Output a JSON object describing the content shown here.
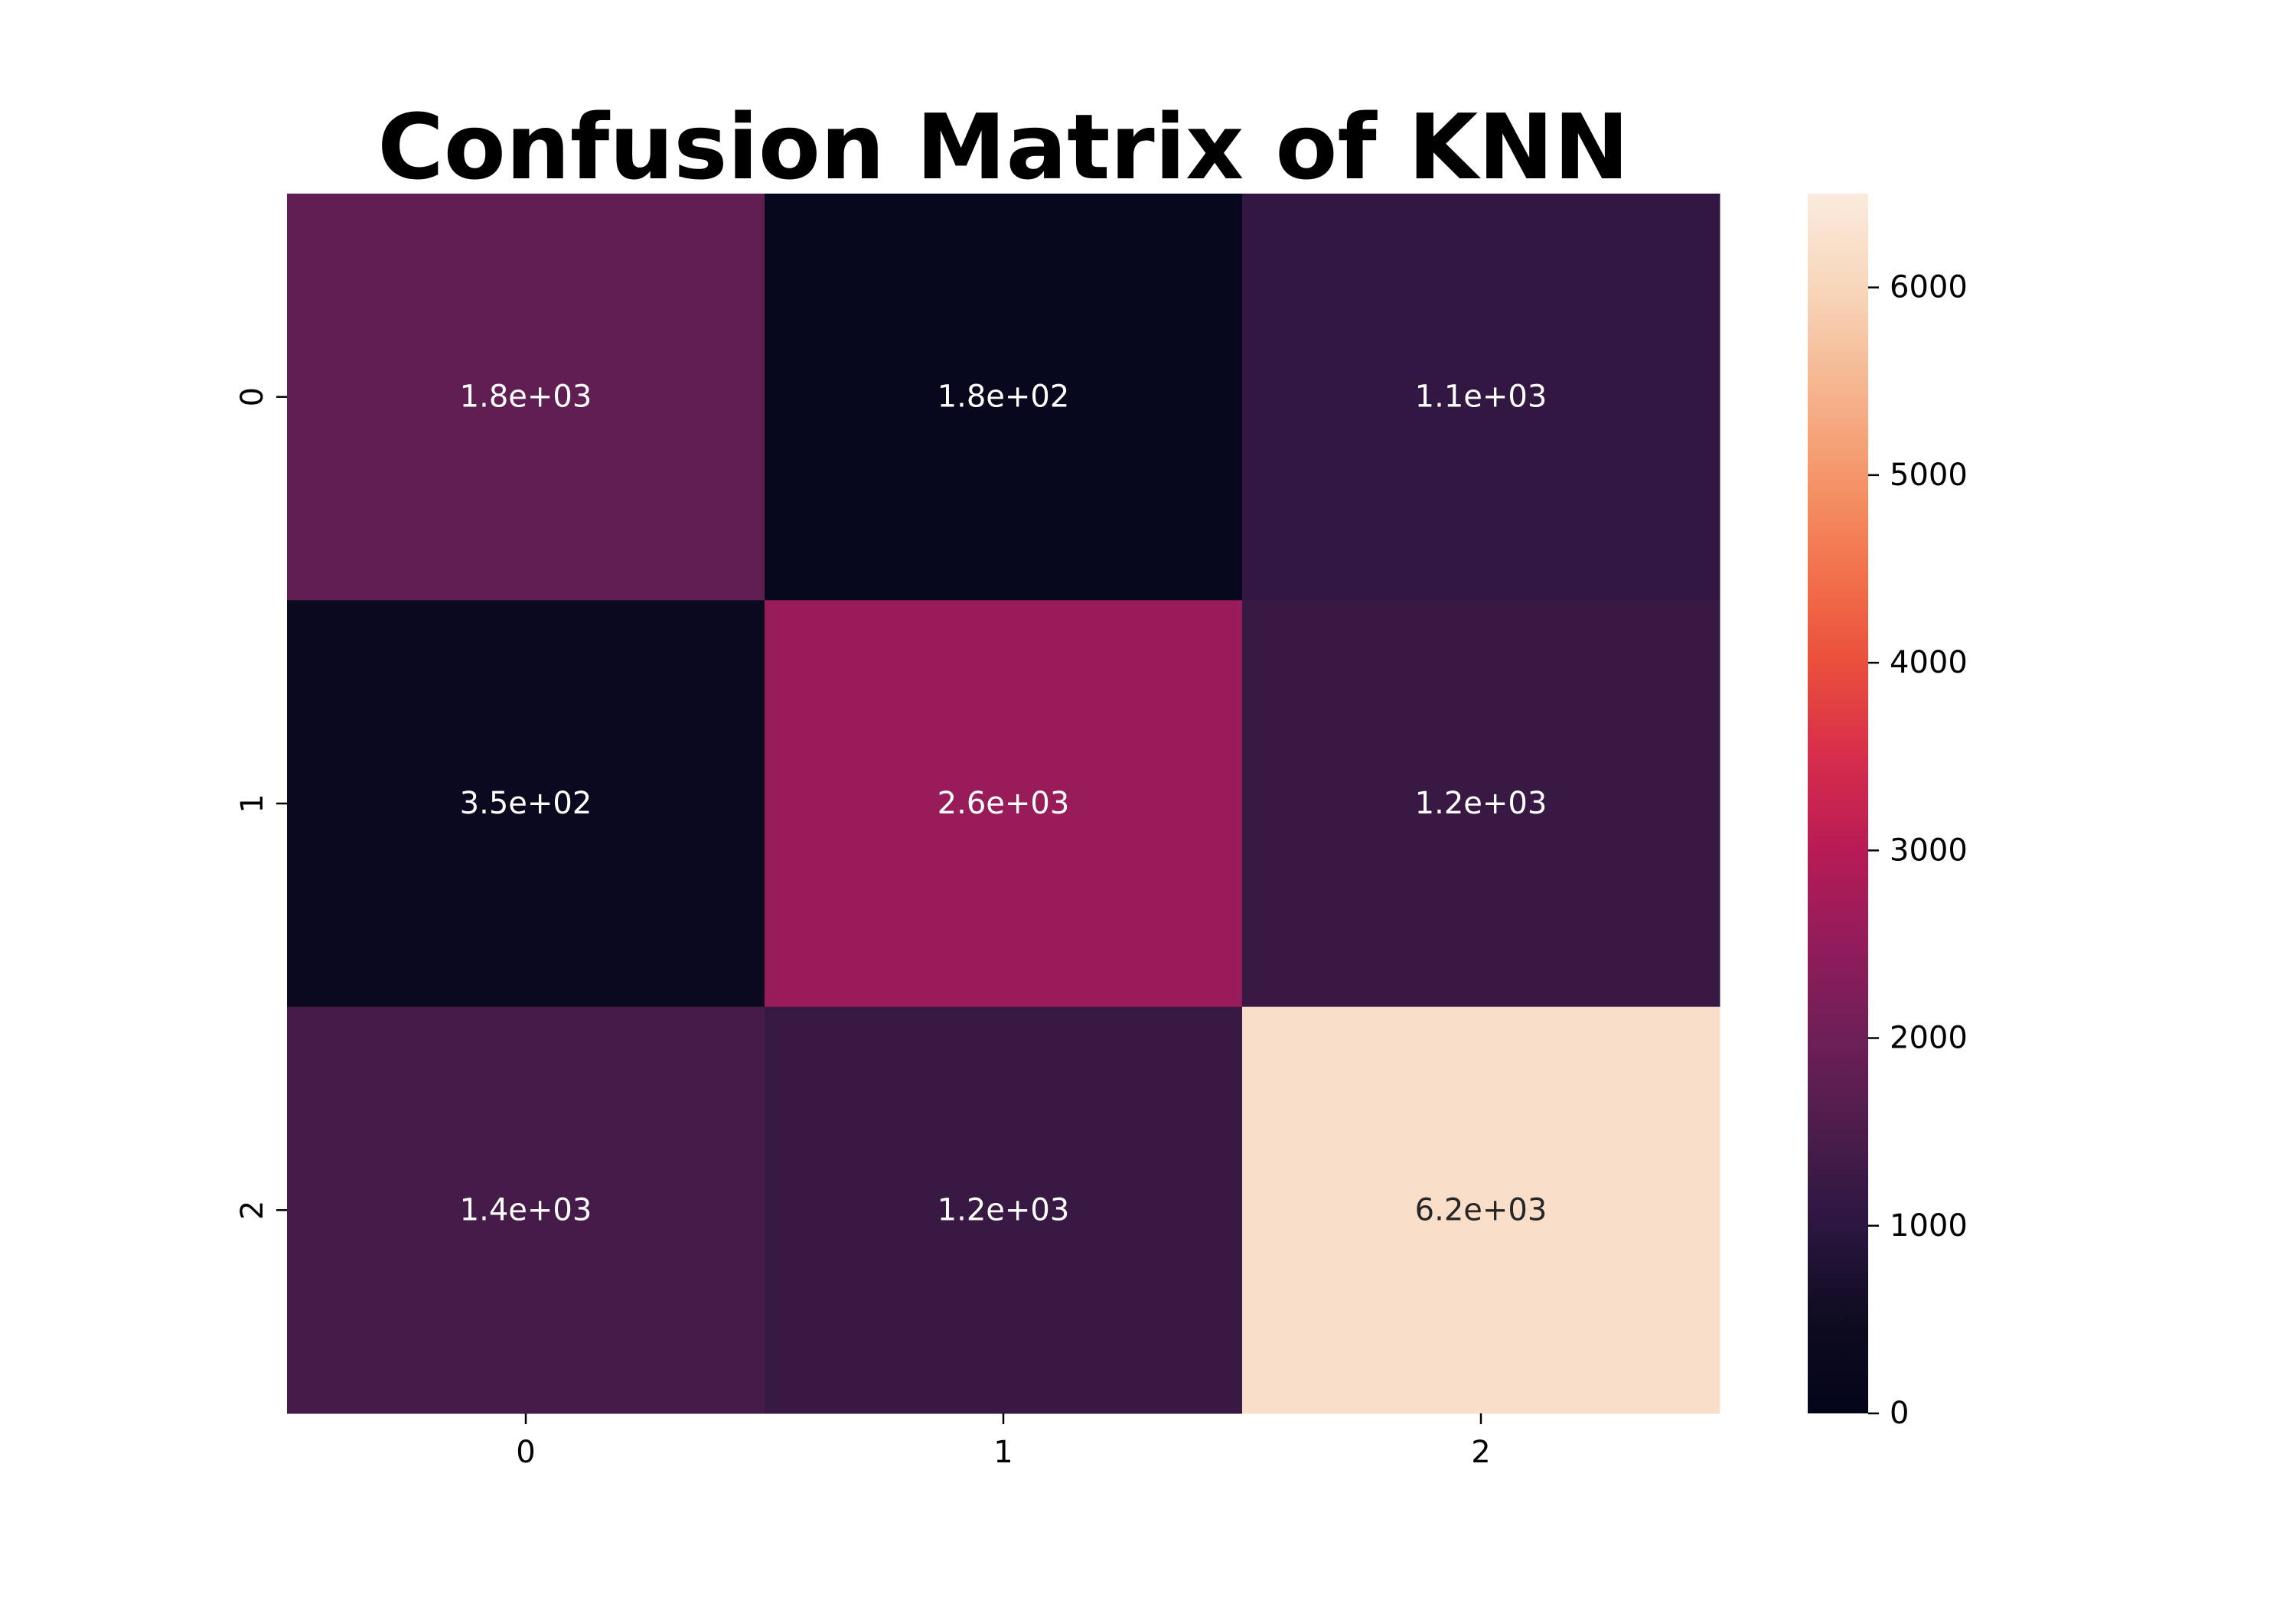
{
  "chart_data": {
    "type": "heatmap",
    "title": "Confusion Matrix of KNN",
    "xlabel": "",
    "ylabel": "",
    "x_categories": [
      "0",
      "1",
      "2"
    ],
    "y_categories": [
      "0",
      "1",
      "2"
    ],
    "values": [
      [
        1800,
        180,
        1100
      ],
      [
        350,
        2600,
        1200
      ],
      [
        1400,
        1200,
        6200
      ]
    ],
    "annotations": [
      [
        "1.8e+03",
        "1.8e+02",
        "1.1e+03"
      ],
      [
        "3.5e+02",
        "2.6e+03",
        "1.2e+03"
      ],
      [
        "1.4e+03",
        "1.2e+03",
        "6.2e+03"
      ]
    ],
    "colorbar": {
      "range": [
        0,
        6500
      ],
      "ticks": [
        0,
        1000,
        2000,
        3000,
        4000,
        5000,
        6000
      ],
      "tick_labels": [
        "0",
        "1000",
        "2000",
        "3000",
        "4000",
        "5000",
        "6000"
      ],
      "colormap": "rocket"
    },
    "grid": false,
    "legend": "none"
  }
}
